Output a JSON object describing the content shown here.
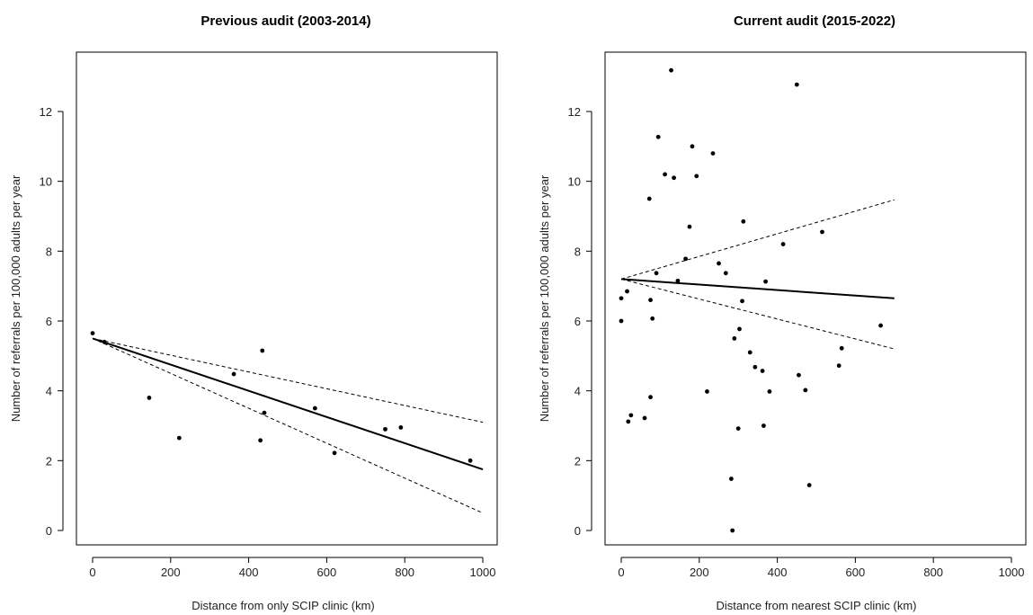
{
  "chart_data": [
    {
      "type": "scatter",
      "title": "Previous audit (2003-2014)",
      "xlabel": "Distance from only SCIP clinic (km)",
      "ylabel": "Number of referrals per 100,000 adults per year",
      "xlim": [
        0,
        1000
      ],
      "ylim": [
        0,
        13
      ],
      "xticks": [
        0,
        200,
        400,
        600,
        800,
        1000
      ],
      "yticks": [
        0,
        2,
        4,
        6,
        8,
        10,
        12
      ],
      "grid": false,
      "points": [
        {
          "x": 0,
          "y": 5.65
        },
        {
          "x": 30,
          "y": 5.4
        },
        {
          "x": 145,
          "y": 3.8
        },
        {
          "x": 222,
          "y": 2.65
        },
        {
          "x": 362,
          "y": 4.48
        },
        {
          "x": 430,
          "y": 2.58
        },
        {
          "x": 435,
          "y": 5.15
        },
        {
          "x": 440,
          "y": 3.37
        },
        {
          "x": 570,
          "y": 3.5
        },
        {
          "x": 620,
          "y": 2.22
        },
        {
          "x": 750,
          "y": 2.9
        },
        {
          "x": 790,
          "y": 2.95
        },
        {
          "x": 968,
          "y": 2.0
        }
      ],
      "fit": {
        "x": [
          0,
          1000
        ],
        "y": [
          5.5,
          1.75
        ]
      },
      "ci_upper": {
        "x": [
          0,
          1000
        ],
        "y": [
          5.5,
          3.1
        ]
      },
      "ci_lower": {
        "x": [
          0,
          1000
        ],
        "y": [
          5.5,
          0.5
        ]
      }
    },
    {
      "type": "scatter",
      "title": "Current audit (2015-2022)",
      "xlabel": "Distance from nearest SCIP clinic (km)",
      "ylabel": "Number of referrals per 100,000 adults per year",
      "xlim": [
        0,
        1000
      ],
      "ylim": [
        0,
        13
      ],
      "xticks": [
        0,
        200,
        400,
        600,
        800,
        1000
      ],
      "yticks": [
        0,
        2,
        4,
        6,
        8,
        10,
        12
      ],
      "grid": false,
      "points": [
        {
          "x": 0,
          "y": 6.65
        },
        {
          "x": 0,
          "y": 6.0
        },
        {
          "x": 15,
          "y": 6.85
        },
        {
          "x": 18,
          "y": 3.12
        },
        {
          "x": 25,
          "y": 3.3
        },
        {
          "x": 60,
          "y": 3.22
        },
        {
          "x": 72,
          "y": 9.5
        },
        {
          "x": 75,
          "y": 6.6
        },
        {
          "x": 75,
          "y": 3.82
        },
        {
          "x": 80,
          "y": 6.07
        },
        {
          "x": 90,
          "y": 7.37
        },
        {
          "x": 95,
          "y": 11.27
        },
        {
          "x": 112,
          "y": 10.2
        },
        {
          "x": 128,
          "y": 13.18
        },
        {
          "x": 135,
          "y": 10.1
        },
        {
          "x": 145,
          "y": 7.15
        },
        {
          "x": 165,
          "y": 7.78
        },
        {
          "x": 175,
          "y": 8.7
        },
        {
          "x": 182,
          "y": 11.0
        },
        {
          "x": 193,
          "y": 10.15
        },
        {
          "x": 220,
          "y": 3.98
        },
        {
          "x": 235,
          "y": 10.8
        },
        {
          "x": 250,
          "y": 7.65
        },
        {
          "x": 268,
          "y": 7.37
        },
        {
          "x": 282,
          "y": 1.48
        },
        {
          "x": 285,
          "y": 0.0
        },
        {
          "x": 290,
          "y": 5.5
        },
        {
          "x": 300,
          "y": 2.92
        },
        {
          "x": 303,
          "y": 5.77
        },
        {
          "x": 310,
          "y": 6.57
        },
        {
          "x": 313,
          "y": 8.85
        },
        {
          "x": 330,
          "y": 5.1
        },
        {
          "x": 343,
          "y": 4.68
        },
        {
          "x": 362,
          "y": 4.57
        },
        {
          "x": 365,
          "y": 3.0
        },
        {
          "x": 370,
          "y": 7.13
        },
        {
          "x": 380,
          "y": 3.98
        },
        {
          "x": 415,
          "y": 8.2
        },
        {
          "x": 450,
          "y": 12.77
        },
        {
          "x": 455,
          "y": 4.45
        },
        {
          "x": 472,
          "y": 4.02
        },
        {
          "x": 482,
          "y": 1.3
        },
        {
          "x": 515,
          "y": 8.55
        },
        {
          "x": 558,
          "y": 4.72
        },
        {
          "x": 565,
          "y": 5.22
        },
        {
          "x": 665,
          "y": 5.87
        }
      ],
      "fit": {
        "x": [
          0,
          700
        ],
        "y": [
          7.2,
          6.65
        ]
      },
      "ci_upper": {
        "x": [
          0,
          700
        ],
        "y": [
          7.2,
          9.47
        ]
      },
      "ci_lower": {
        "x": [
          0,
          700
        ],
        "y": [
          7.2,
          5.2
        ]
      }
    }
  ]
}
